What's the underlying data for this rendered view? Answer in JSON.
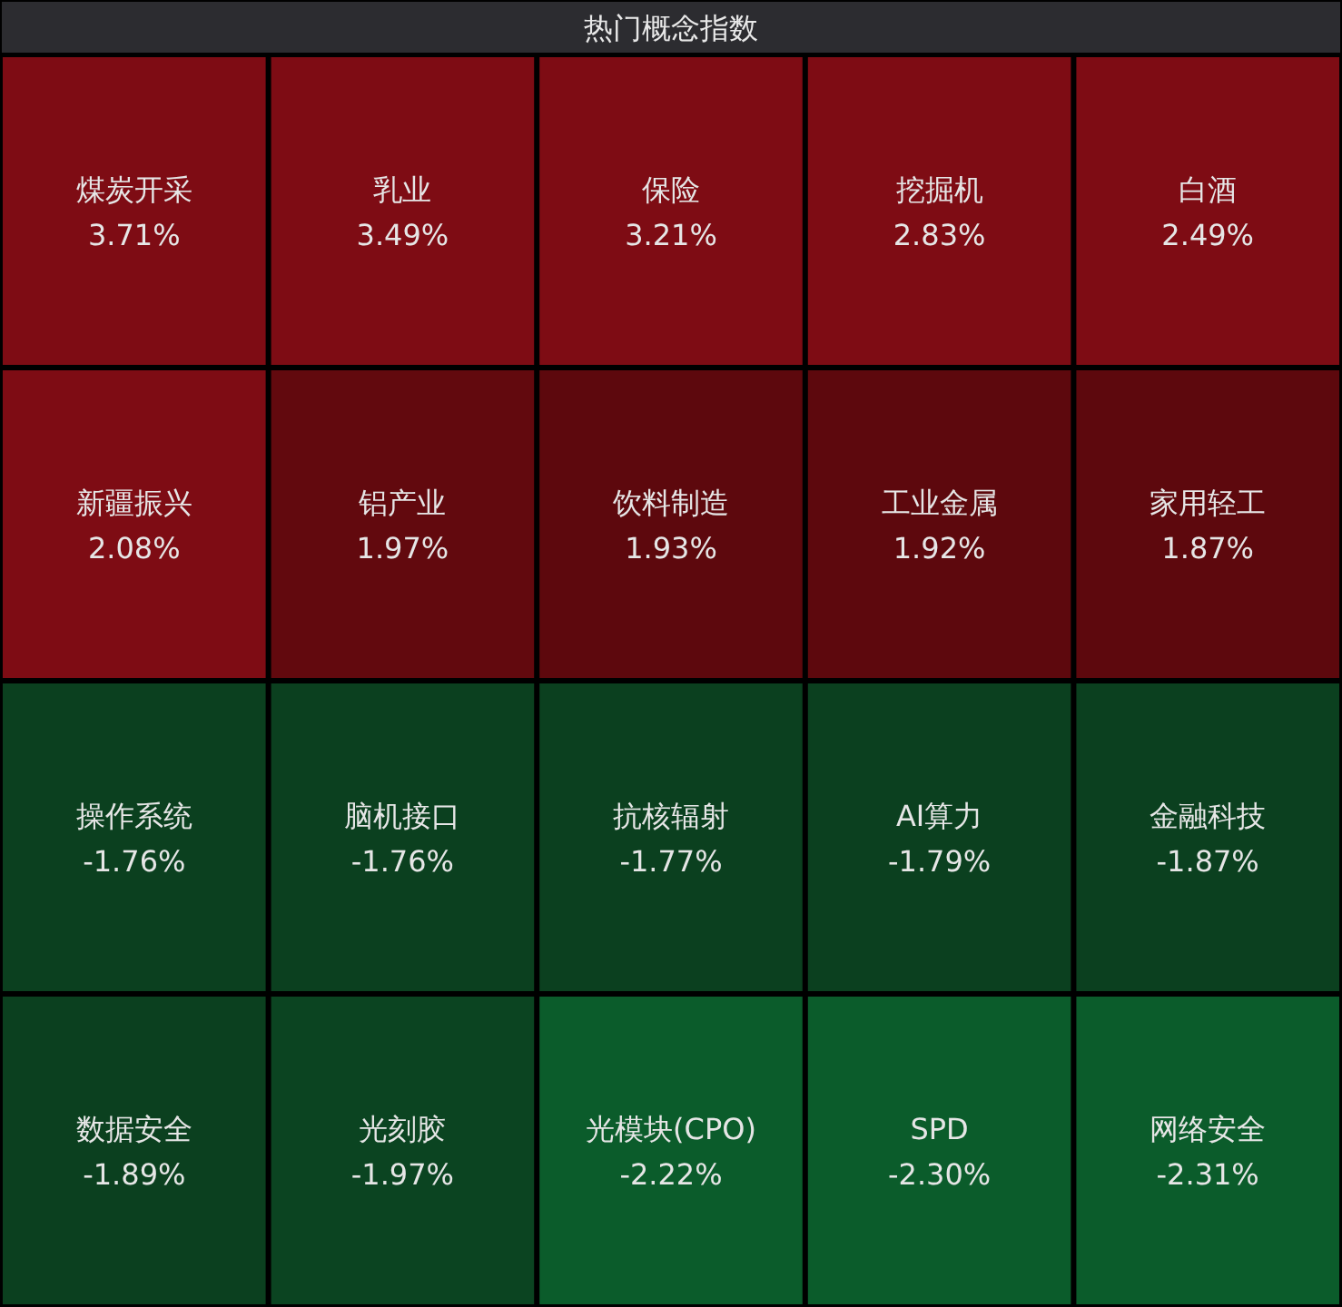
{
  "chart_data": {
    "type": "other",
    "title": "热门概念指数",
    "categories": [
      "煤炭开采",
      "乳业",
      "保险",
      "挖掘机",
      "白酒",
      "新疆振兴",
      "铝产业",
      "饮料制造",
      "工业金属",
      "家用轻工",
      "操作系统",
      "脑机接口",
      "抗核辐射",
      "AI算力",
      "金融科技",
      "数据安全",
      "光刻胶",
      "光模块(CPO)",
      "SPD",
      "网络安全"
    ],
    "values": [
      3.71,
      3.49,
      3.21,
      2.83,
      2.49,
      2.08,
      1.97,
      1.93,
      1.92,
      1.87,
      -1.76,
      -1.76,
      -1.77,
      -1.79,
      -1.87,
      -1.89,
      -1.97,
      -2.22,
      -2.3,
      -2.31
    ],
    "value_labels": [
      "3.71%",
      "3.49%",
      "3.21%",
      "2.83%",
      "2.49%",
      "2.08%",
      "1.97%",
      "1.93%",
      "1.92%",
      "1.87%",
      "-1.76%",
      "-1.76%",
      "-1.77%",
      "-1.79%",
      "-1.87%",
      "-1.89%",
      "-1.97%",
      "-2.22%",
      "-2.30%",
      "-2.31%"
    ]
  }
}
